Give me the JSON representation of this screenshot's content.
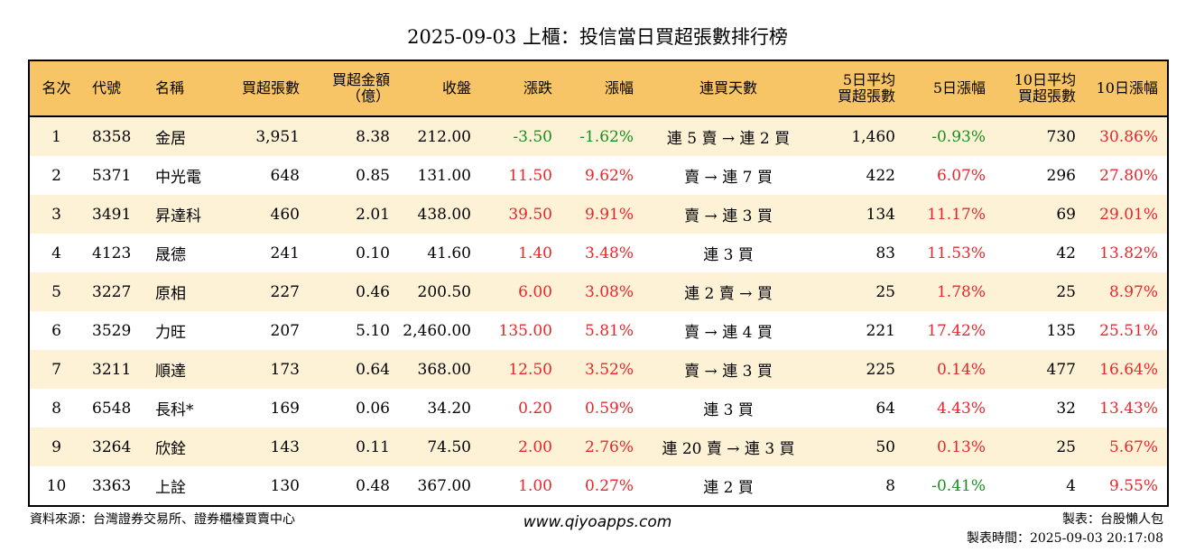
{
  "title": "2025-09-03 上櫃：投信當日買超張數排行榜",
  "headers": {
    "rank": "名次",
    "code": "代號",
    "name": "名稱",
    "net_buy_lots": "買超張數",
    "net_buy_amount_1": "買超金額",
    "net_buy_amount_2": "（億）",
    "close": "收盤",
    "change": "漲跌",
    "change_pct": "漲幅",
    "consecutive": "連買天數",
    "avg5_1": "5日平均",
    "avg5_2": "買超張數",
    "pct5": "5日漲幅",
    "avg10_1": "10日平均",
    "avg10_2": "買超張數",
    "pct10": "10日漲幅"
  },
  "rows": [
    {
      "rank": "1",
      "code": "8358",
      "name": "金居",
      "lots": "3,951",
      "amount": "8.38",
      "close": "212.00",
      "change": "-3.50",
      "change_pct": "-1.62%",
      "consecutive": "連 5 賣 → 連 2 買",
      "avg5": "1,460",
      "pct5": "-0.93%",
      "avg10": "730",
      "pct10": "30.86%",
      "change_color": "green",
      "pct5_color": "green",
      "pct10_color": "red"
    },
    {
      "rank": "2",
      "code": "5371",
      "name": "中光電",
      "lots": "648",
      "amount": "0.85",
      "close": "131.00",
      "change": "11.50",
      "change_pct": "9.62%",
      "consecutive": "賣 → 連 7 買",
      "avg5": "422",
      "pct5": "6.07%",
      "avg10": "296",
      "pct10": "27.80%",
      "change_color": "red",
      "pct5_color": "red",
      "pct10_color": "red"
    },
    {
      "rank": "3",
      "code": "3491",
      "name": "昇達科",
      "lots": "460",
      "amount": "2.01",
      "close": "438.00",
      "change": "39.50",
      "change_pct": "9.91%",
      "consecutive": "賣 → 連 3 買",
      "avg5": "134",
      "pct5": "11.17%",
      "avg10": "69",
      "pct10": "29.01%",
      "change_color": "red",
      "pct5_color": "red",
      "pct10_color": "red"
    },
    {
      "rank": "4",
      "code": "4123",
      "name": "晟德",
      "lots": "241",
      "amount": "0.10",
      "close": "41.60",
      "change": "1.40",
      "change_pct": "3.48%",
      "consecutive": "連 3 買",
      "avg5": "83",
      "pct5": "11.53%",
      "avg10": "42",
      "pct10": "13.82%",
      "change_color": "red",
      "pct5_color": "red",
      "pct10_color": "red"
    },
    {
      "rank": "5",
      "code": "3227",
      "name": "原相",
      "lots": "227",
      "amount": "0.46",
      "close": "200.50",
      "change": "6.00",
      "change_pct": "3.08%",
      "consecutive": "連 2 賣 → 買",
      "avg5": "25",
      "pct5": "1.78%",
      "avg10": "25",
      "pct10": "8.97%",
      "change_color": "red",
      "pct5_color": "red",
      "pct10_color": "red"
    },
    {
      "rank": "6",
      "code": "3529",
      "name": "力旺",
      "lots": "207",
      "amount": "5.10",
      "close": "2,460.00",
      "change": "135.00",
      "change_pct": "5.81%",
      "consecutive": "賣 → 連 4 買",
      "avg5": "221",
      "pct5": "17.42%",
      "avg10": "135",
      "pct10": "25.51%",
      "change_color": "red",
      "pct5_color": "red",
      "pct10_color": "red"
    },
    {
      "rank": "7",
      "code": "3211",
      "name": "順達",
      "lots": "173",
      "amount": "0.64",
      "close": "368.00",
      "change": "12.50",
      "change_pct": "3.52%",
      "consecutive": "賣 → 連 3 買",
      "avg5": "225",
      "pct5": "0.14%",
      "avg10": "477",
      "pct10": "16.64%",
      "change_color": "red",
      "pct5_color": "red",
      "pct10_color": "red"
    },
    {
      "rank": "8",
      "code": "6548",
      "name": "長科*",
      "lots": "169",
      "amount": "0.06",
      "close": "34.20",
      "change": "0.20",
      "change_pct": "0.59%",
      "consecutive": "連 3 買",
      "avg5": "64",
      "pct5": "4.43%",
      "avg10": "32",
      "pct10": "13.43%",
      "change_color": "red",
      "pct5_color": "red",
      "pct10_color": "red"
    },
    {
      "rank": "9",
      "code": "3264",
      "name": "欣銓",
      "lots": "143",
      "amount": "0.11",
      "close": "74.50",
      "change": "2.00",
      "change_pct": "2.76%",
      "consecutive": "連 20 賣 → 連 3 買",
      "avg5": "50",
      "pct5": "0.13%",
      "avg10": "25",
      "pct10": "5.67%",
      "change_color": "red",
      "pct5_color": "red",
      "pct10_color": "red"
    },
    {
      "rank": "10",
      "code": "3363",
      "name": "上詮",
      "lots": "130",
      "amount": "0.48",
      "close": "367.00",
      "change": "1.00",
      "change_pct": "0.27%",
      "consecutive": "連 2 買",
      "avg5": "8",
      "pct5": "-0.41%",
      "avg10": "4",
      "pct10": "9.55%",
      "change_color": "red",
      "pct5_color": "green",
      "pct10_color": "red"
    }
  ],
  "footer": {
    "source": "資料來源：台灣證券交易所、證券櫃檯買賣中心",
    "website": "www.qiyoapps.com",
    "maker": "製表：台股懶人包",
    "made_time": "製表時間：2025-09-03 20:17:08"
  },
  "colors": {
    "header_bg": "#f7c566",
    "stripe": "#fdf1d6",
    "up": "#e8262a",
    "down": "#178f1f"
  }
}
